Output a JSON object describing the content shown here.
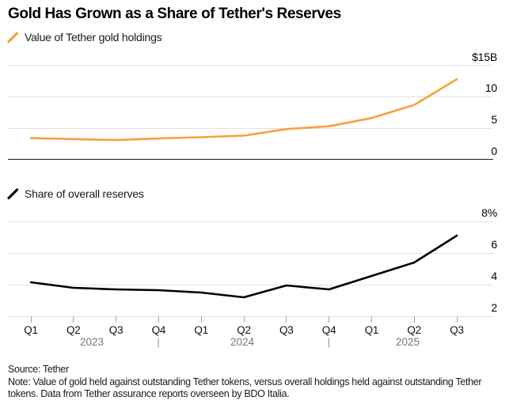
{
  "header": {
    "title": "Gold Has Grown as a Share of Tether's Reserves"
  },
  "chart_data": [
    {
      "type": "line",
      "legend": "Value of Tether gold holdings",
      "color": "#F7A13B",
      "categories": [
        "Q1 2023",
        "Q2 2023",
        "Q3 2023",
        "Q4 2023",
        "Q1 2024",
        "Q2 2024",
        "Q3 2024",
        "Q4 2024",
        "Q1 2025",
        "Q2 2025",
        "Q3 2025"
      ],
      "values": [
        3.4,
        3.25,
        3.1,
        3.35,
        3.55,
        3.8,
        4.85,
        5.3,
        6.6,
        8.7,
        12.8
      ],
      "ylim": [
        0,
        15
      ],
      "yticks": [
        {
          "label": "$15B",
          "value": 15
        },
        {
          "label": "10",
          "value": 10
        },
        {
          "label": "5",
          "value": 5
        },
        {
          "label": "0",
          "value": 0
        }
      ],
      "grid": "horizontal",
      "legend_position": "top-left"
    },
    {
      "type": "line",
      "legend": "Share of overall reserves",
      "color": "#000000",
      "categories": [
        "Q1 2023",
        "Q2 2023",
        "Q3 2023",
        "Q4 2023",
        "Q1 2024",
        "Q2 2024",
        "Q3 2024",
        "Q4 2024",
        "Q1 2025",
        "Q2 2025",
        "Q3 2025"
      ],
      "values": [
        4.15,
        3.8,
        3.7,
        3.65,
        3.5,
        3.2,
        3.95,
        3.7,
        4.55,
        5.4,
        7.1
      ],
      "ylim": [
        2,
        8
      ],
      "yticks": [
        {
          "label": "8%",
          "value": 8
        },
        {
          "label": "6",
          "value": 6
        },
        {
          "label": "4",
          "value": 4
        },
        {
          "label": "2",
          "value": 2
        }
      ],
      "grid": "horizontal",
      "legend_position": "top-left"
    }
  ],
  "xaxis": {
    "quarters": [
      "Q1",
      "Q2",
      "Q3",
      "Q4",
      "Q1",
      "Q2",
      "Q3",
      "Q4",
      "Q1",
      "Q2",
      "Q3"
    ],
    "years": [
      "2023",
      "2024",
      "2025"
    ],
    "separator": "|"
  },
  "footer": {
    "source": "Source: Tether",
    "note": "Note: Value of gold held against outstanding Tether tokens, versus overall holdings held against outstanding Tether tokens. Data from Tether assurance reports overseen by BDO Italia."
  }
}
